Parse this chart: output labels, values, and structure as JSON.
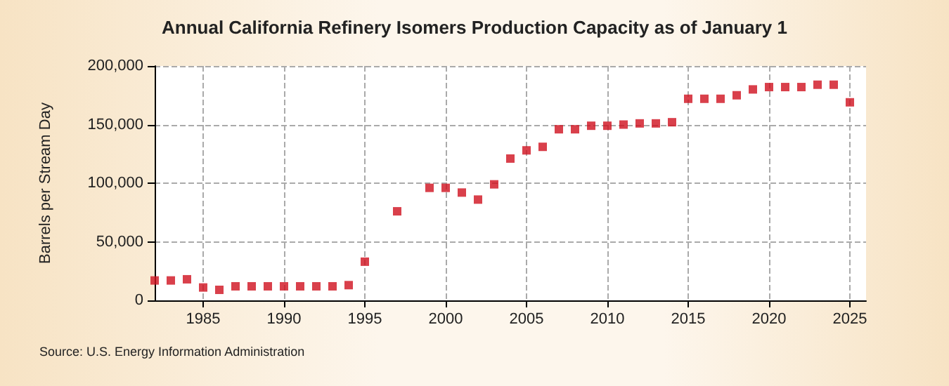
{
  "chart_data": {
    "type": "scatter",
    "title": "Annual California Refinery Isomers Production Capacity as of January 1",
    "ylabel": "Barrels per Stream Day",
    "annotations": [
      "Source: U.S. Energy Information Administration"
    ],
    "x": [
      1982,
      1983,
      1984,
      1985,
      1986,
      1987,
      1988,
      1989,
      1990,
      1991,
      1992,
      1993,
      1994,
      1995,
      1997,
      1999,
      2000,
      2001,
      2002,
      2003,
      2004,
      2005,
      2006,
      2007,
      2008,
      2009,
      2010,
      2011,
      2012,
      2013,
      2014,
      2015,
      2016,
      2017,
      2018,
      2019,
      2020,
      2021,
      2022,
      2023,
      2024,
      2025
    ],
    "series": [
      {
        "color": "#d0101e",
        "values": [
          17000,
          17000,
          18000,
          11000,
          9000,
          12000,
          12000,
          12000,
          12000,
          12000,
          12000,
          12000,
          13000,
          33000,
          76000,
          96000,
          96000,
          92000,
          86000,
          99000,
          121000,
          128000,
          131000,
          146000,
          146000,
          149000,
          149000,
          150000,
          151000,
          151000,
          152000,
          172000,
          172000,
          172000,
          175000,
          180000,
          182000,
          182000,
          182000,
          184000,
          184000,
          169000
        ]
      }
    ],
    "xlim": [
      1982,
      2026
    ],
    "xticks": [
      1985,
      1990,
      1995,
      2000,
      2005,
      2010,
      2015,
      2020,
      2025
    ],
    "ylim": [
      0,
      200000
    ],
    "yticks": [
      0,
      {
        "value": 50000,
        "label": "50,000"
      },
      {
        "value": 100000,
        "label": "100,000"
      },
      {
        "value": 150000,
        "label": "150,000"
      },
      {
        "value": 200000,
        "label": "200,000"
      }
    ],
    "grid": true,
    "marker": "square"
  }
}
